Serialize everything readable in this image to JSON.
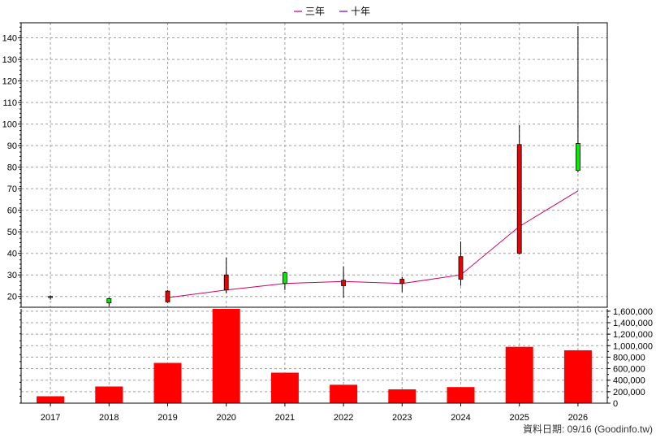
{
  "chart_data": [
    {
      "type": "candlestick",
      "legend": [
        {
          "name": "三年",
          "color": "#cc0066"
        },
        {
          "name": "十年",
          "color": "#6600cc"
        }
      ],
      "categories": [
        "2017",
        "2018",
        "2019",
        "2020",
        "2021",
        "2022",
        "2023",
        "2024",
        "2025",
        "2026"
      ],
      "yticks": [
        20,
        30,
        40,
        50,
        60,
        70,
        80,
        90,
        100,
        110,
        120,
        130,
        140
      ],
      "ylim": [
        15,
        147
      ],
      "candles": [
        {
          "open": 19.5,
          "high": 20.5,
          "low": 18.5,
          "close": 20.0
        },
        {
          "open": 17.0,
          "high": 19.5,
          "low": 15.5,
          "close": 19.0
        },
        {
          "open": 22.5,
          "high": 23.0,
          "low": 17.0,
          "close": 17.5
        },
        {
          "open": 30.0,
          "high": 38.0,
          "low": 21.5,
          "close": 23.0
        },
        {
          "open": 26.0,
          "high": 31.5,
          "low": 23.0,
          "close": 31.0
        },
        {
          "open": 27.5,
          "high": 34.0,
          "low": 19.5,
          "close": 25.0
        },
        {
          "open": 28.0,
          "high": 29.0,
          "low": 22.0,
          "close": 26.0
        },
        {
          "open": 38.5,
          "high": 45.5,
          "low": 25.0,
          "close": 28.0
        },
        {
          "open": 90.5,
          "high": 99.5,
          "low": 39.5,
          "close": 40.0
        },
        {
          "open": 78.5,
          "high": 145.5,
          "low": 77.5,
          "close": 91.0
        }
      ],
      "series": [
        {
          "name": "三年",
          "color": "#cc0066",
          "values": [
            null,
            null,
            19.5,
            23.0,
            26.0,
            27.0,
            26.0,
            30.0,
            52.5,
            69.0
          ]
        }
      ],
      "up_color": "#00ee00",
      "down_color": "#ee0000",
      "grid": true
    },
    {
      "type": "bar",
      "categories": [
        "2017",
        "2018",
        "2019",
        "2020",
        "2021",
        "2022",
        "2023",
        "2024",
        "2025",
        "2026"
      ],
      "values": [
        120000,
        290000,
        700000,
        1640000,
        530000,
        320000,
        240000,
        280000,
        980000,
        920000
      ],
      "yticks": [
        0,
        200000,
        400000,
        600000,
        800000,
        1000000,
        1200000,
        1400000,
        1600000
      ],
      "ytick_labels": [
        "0",
        "200,000",
        "400,000",
        "600,000",
        "800,000",
        "1,000,000",
        "1,200,000",
        "1,400,000",
        "1,600,000"
      ],
      "ylim": [
        0,
        1640000
      ],
      "color": "#ff0000",
      "grid": true
    }
  ],
  "footer": {
    "source": "資料日期: 09/16  (Goodinfo.tw)"
  }
}
